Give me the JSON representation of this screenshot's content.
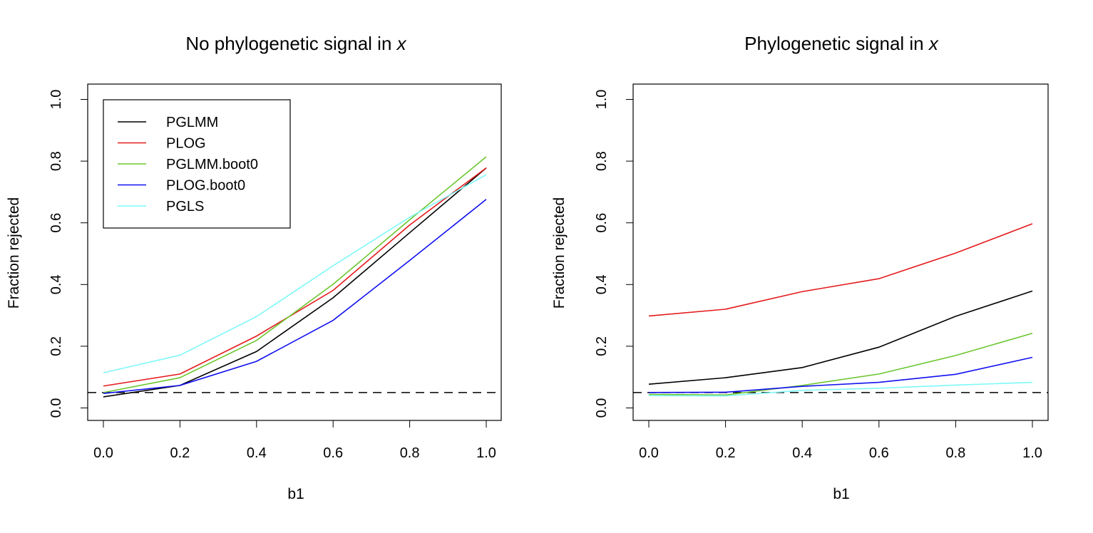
{
  "chart_data": [
    {
      "type": "line",
      "title": "No phylogenetic signal in ",
      "title_italic": "x",
      "xlabel": "b1",
      "ylabel": "Fraction rejected",
      "x": [
        0.0,
        0.2,
        0.4,
        0.6,
        0.8,
        1.0
      ],
      "xlim": [
        0,
        1
      ],
      "ylim": [
        0,
        1
      ],
      "xticks": [
        "0.0",
        "0.2",
        "0.4",
        "0.6",
        "0.8",
        "1.0"
      ],
      "yticks": [
        "0.0",
        "0.2",
        "0.4",
        "0.6",
        "0.8",
        "1.0"
      ],
      "grid": false,
      "reference_line": {
        "y": 0.05,
        "style": "dashed",
        "color": "#000000"
      },
      "legend": {
        "placement": "top-left"
      },
      "series": [
        {
          "name": "PGLMM",
          "color": "#000000",
          "values": [
            0.036,
            0.073,
            0.183,
            0.357,
            0.568,
            0.778
          ]
        },
        {
          "name": "PLOG",
          "color": "#e41a1c",
          "values": [
            0.071,
            0.11,
            0.233,
            0.381,
            0.593,
            0.778
          ]
        },
        {
          "name": "PGLMM.boot0",
          "color": "#6cc62f",
          "values": [
            0.05,
            0.098,
            0.219,
            0.401,
            0.61,
            0.814
          ]
        },
        {
          "name": "PLOG.boot0",
          "color": "#1010f0",
          "values": [
            0.047,
            0.073,
            0.151,
            0.284,
            0.478,
            0.676
          ]
        },
        {
          "name": "PGLS",
          "color": "#7ff8f8",
          "values": [
            0.114,
            0.171,
            0.296,
            0.461,
            0.618,
            0.756
          ]
        }
      ]
    },
    {
      "type": "line",
      "title": "Phylogenetic signal in ",
      "title_italic": "x",
      "xlabel": "b1",
      "ylabel": "Fraction rejected",
      "x": [
        0.0,
        0.2,
        0.4,
        0.6,
        0.8,
        1.0
      ],
      "xlim": [
        0,
        1
      ],
      "ylim": [
        0,
        1
      ],
      "xticks": [
        "0.0",
        "0.2",
        "0.4",
        "0.6",
        "0.8",
        "1.0"
      ],
      "yticks": [
        "0.0",
        "0.2",
        "0.4",
        "0.6",
        "0.8",
        "1.0"
      ],
      "grid": false,
      "reference_line": {
        "y": 0.05,
        "style": "dashed",
        "color": "#000000"
      },
      "series": [
        {
          "color": "#000000",
          "values": [
            0.077,
            0.098,
            0.131,
            0.197,
            0.297,
            0.379
          ]
        },
        {
          "color": "#e41a1c",
          "values": [
            0.298,
            0.32,
            0.377,
            0.419,
            0.502,
            0.597
          ]
        },
        {
          "color": "#6cc62f",
          "values": [
            0.044,
            0.042,
            0.073,
            0.11,
            0.17,
            0.242
          ]
        },
        {
          "color": "#1010f0",
          "values": [
            0.05,
            0.051,
            0.07,
            0.083,
            0.109,
            0.164
          ]
        },
        {
          "color": "#7ff8f8",
          "values": [
            0.04,
            0.039,
            0.057,
            0.064,
            0.074,
            0.083
          ]
        }
      ]
    }
  ]
}
